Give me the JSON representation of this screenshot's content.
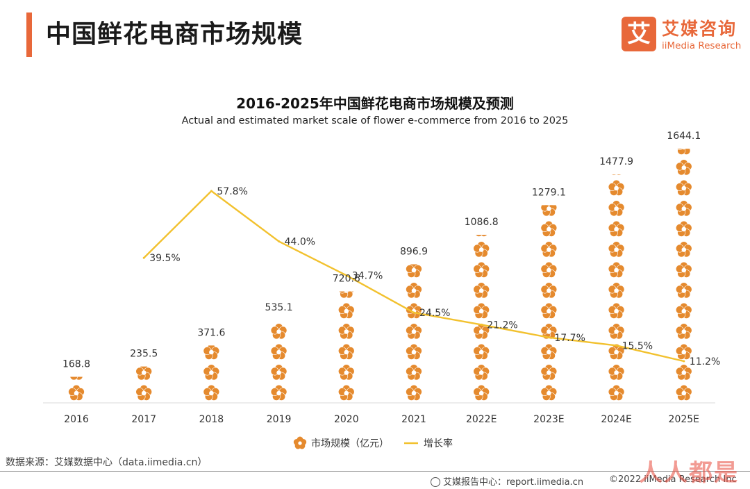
{
  "header": {
    "title": "中国鲜花电商市场规模",
    "logo_mark": "艾",
    "logo_cn": "艾媒咨询",
    "logo_en": "iiMedia Research"
  },
  "colors": {
    "accent": "#e8683a",
    "flower": "#e58a2e",
    "line": "#f2c12e"
  },
  "chart_data": {
    "type": "bar",
    "title": "2016-2025年中国鲜花电商市场规模及预测",
    "subtitle": "Actual and estimated market scale of flower e-commerce from 2016 to 2025",
    "categories": [
      "2016",
      "2017",
      "2018",
      "2019",
      "2020",
      "2021",
      "2022E",
      "2023E",
      "2024E",
      "2025E"
    ],
    "series": [
      {
        "name": "市场规模（亿元）",
        "type": "bar",
        "values": [
          168.8,
          235.5,
          371.6,
          535.1,
          720.6,
          896.9,
          1086.8,
          1279.1,
          1477.9,
          1644.1
        ],
        "labels": [
          "168.8",
          "235.5",
          "371.6",
          "535.1",
          "720.6",
          "896.9",
          "1086.8",
          "1279.1",
          "1477.9",
          "1644.1"
        ]
      },
      {
        "name": "增长率",
        "type": "line",
        "values": [
          null,
          39.5,
          57.8,
          44.0,
          34.7,
          24.5,
          21.2,
          17.7,
          15.5,
          11.2
        ],
        "labels": [
          "",
          "39.5%",
          "57.8%",
          "44.0%",
          "34.7%",
          "24.5%",
          "21.2%",
          "17.7%",
          "15.5%",
          "11.2%"
        ]
      }
    ],
    "legend_position": "bottom",
    "grid": false
  },
  "source": "数据来源：艾媒数据中心（data.iimedia.cn）",
  "footer": {
    "report_center": "艾媒报告中心：report.iimedia.cn",
    "copyright": "©2022 iiMedia Research Inc"
  },
  "watermark": "人人都是"
}
